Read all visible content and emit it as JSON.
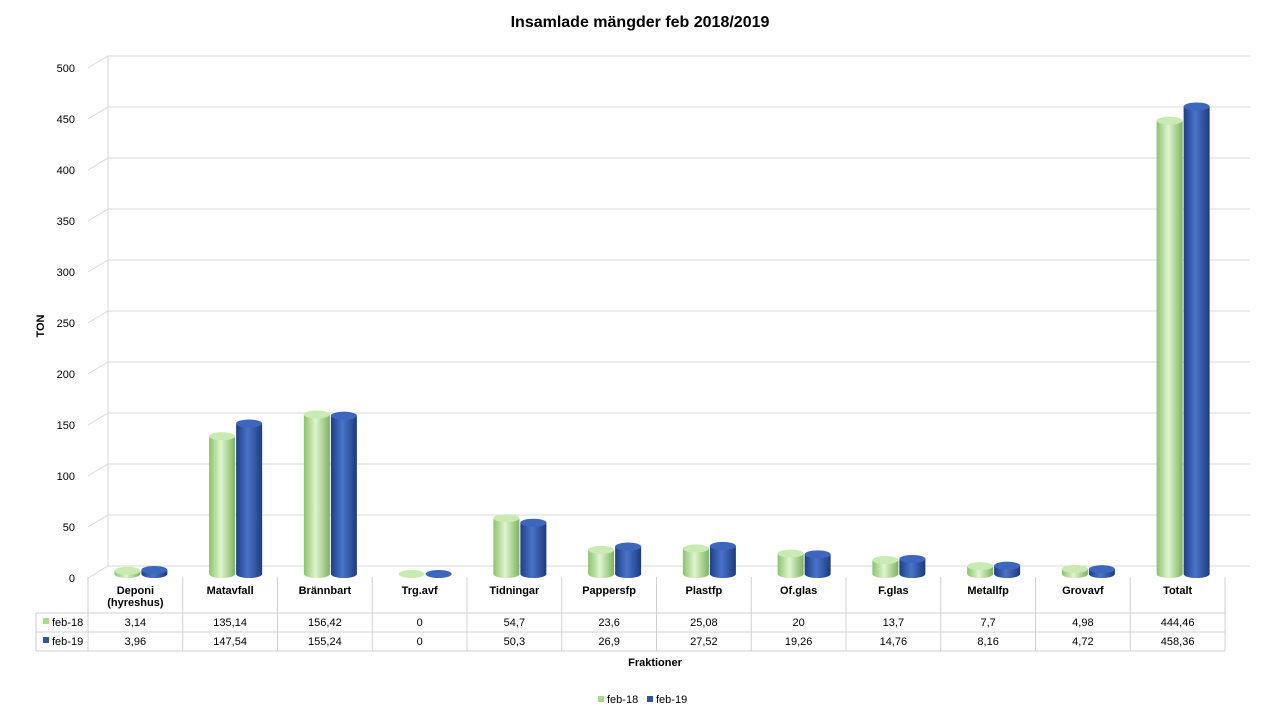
{
  "chart_data": {
    "type": "bar",
    "title": "Insamlade mängder feb 2018/2019",
    "xlabel": "Fraktioner",
    "ylabel": "TON",
    "ylim": [
      0,
      500
    ],
    "yticks": [
      0,
      50,
      100,
      150,
      200,
      250,
      300,
      350,
      400,
      450,
      500
    ],
    "grid": true,
    "legend_position": "bottom",
    "categories": [
      [
        "Deponi",
        "(hyreshus)"
      ],
      [
        "Matavfall"
      ],
      [
        "Brännbart"
      ],
      [
        "Trg.avf"
      ],
      [
        "Tidningar"
      ],
      [
        "Pappersfp"
      ],
      [
        "Plastfp"
      ],
      [
        "Of.glas"
      ],
      [
        "F.glas"
      ],
      [
        "Metallfp"
      ],
      [
        "Grovavf"
      ],
      [
        "Totalt"
      ]
    ],
    "series": [
      {
        "name": "feb-18",
        "color": "#a8d98c",
        "values": [
          3.14,
          135.14,
          156.42,
          0,
          54.7,
          23.6,
          25.08,
          20,
          13.7,
          7.7,
          4.98,
          444.46
        ],
        "labels": [
          "3,14",
          "135,14",
          "156,42",
          "0",
          "54,7",
          "23,6",
          "25,08",
          "20",
          "13,7",
          "7,7",
          "4,98",
          "444,46"
        ]
      },
      {
        "name": "feb-19",
        "color": "#2e54a6",
        "values": [
          3.96,
          147.54,
          155.24,
          0,
          50.3,
          26.9,
          27.52,
          19.26,
          14.76,
          8.16,
          4.72,
          458.36
        ],
        "labels": [
          "3,96",
          "147,54",
          "155,24",
          "0",
          "50,3",
          "26,9",
          "27,52",
          "19,26",
          "14,76",
          "8,16",
          "4,72",
          "458,36"
        ]
      }
    ]
  }
}
